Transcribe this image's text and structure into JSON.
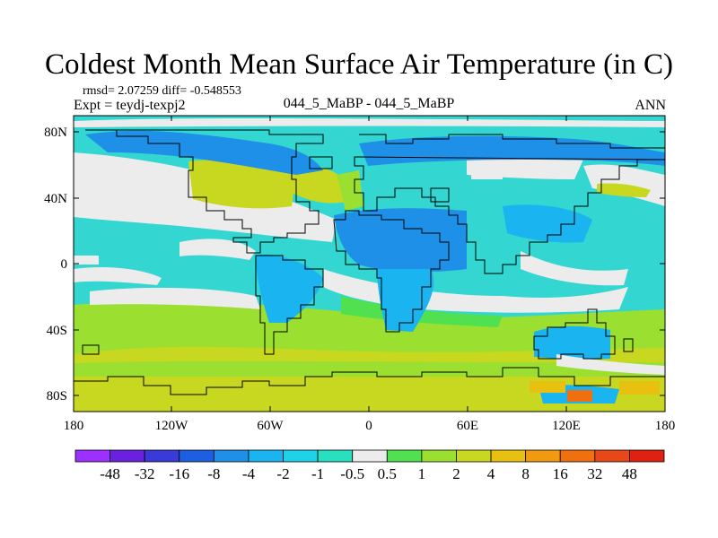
{
  "title": "Coldest Month Mean Surface Air Temperature (in C)",
  "stats_text": "rmsd= 2.07259 diff= -0.548553",
  "expt_text": "Expt = teydj-texpj2",
  "center_label": "044_5_MaBP - 044_5_MaBP",
  "season": "ANN",
  "lat_ticks": [
    "80N",
    "40N",
    "0",
    "40S",
    "80S"
  ],
  "lon_ticks": [
    "180",
    "120W",
    "60W",
    "0",
    "60E",
    "120E",
    "180"
  ],
  "colorbar": {
    "labels": [
      "-48",
      "-32",
      "-16",
      "-8",
      "-4",
      "-2",
      "-1",
      "-0.5",
      "0.5",
      "1",
      "2",
      "4",
      "8",
      "16",
      "32",
      "48"
    ],
    "colors": [
      "#9b30ff",
      "#6a20e0",
      "#3a3ad8",
      "#1c5fe0",
      "#1e90e8",
      "#1ab4f0",
      "#20d2e8",
      "#28e0c0",
      "#ececec",
      "#50e050",
      "#9be030",
      "#c8d820",
      "#e8c010",
      "#f09a10",
      "#f07010",
      "#e84818",
      "#e02010"
    ]
  },
  "map_colors": {
    "ocean": "#33d6d0",
    "sea_light": "#28e0c0",
    "land_cool": "#1ab4f0",
    "land_cold": "#1e90e8",
    "neutral": "#ececec",
    "warm_1": "#50e050",
    "warm_2": "#9be030",
    "warm_3": "#c8d820",
    "warm_4": "#e8c010",
    "hot": "#f07010"
  }
}
